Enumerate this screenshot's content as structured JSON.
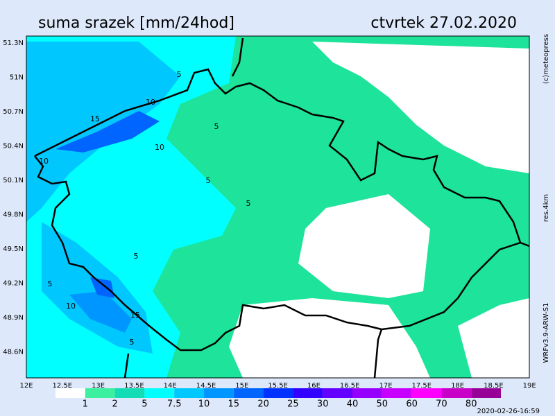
{
  "header": {
    "title": "suma srazek [mm/24hod]",
    "date": "ctvrtek 27.02.2020"
  },
  "map": {
    "lat_labels": [
      "51.3N",
      "51N",
      "50.7N",
      "50.4N",
      "50.1N",
      "49.8N",
      "49.5N",
      "49.2N",
      "48.9N",
      "48.6N"
    ],
    "lon_labels": [
      "12E",
      "12.5E",
      "13E",
      "13.5E",
      "14E",
      "14.5E",
      "15E",
      "15.5E",
      "16E",
      "16.5E",
      "17E",
      "17.5E",
      "18E",
      "18.5E",
      "19E"
    ],
    "contour_labels": [
      "5",
      "10",
      "15",
      "10",
      "10",
      "5",
      "5",
      "5",
      "5",
      "5",
      "10",
      "15",
      "5"
    ]
  },
  "legend": {
    "labels": [
      "1",
      "2",
      "5",
      "7.5",
      "10",
      "15",
      "20",
      "25",
      "30",
      "40",
      "50",
      "60",
      "70",
      "80"
    ],
    "colors": [
      "#ffffff",
      "#3cf0a0",
      "#14dcb4",
      "#00ffff",
      "#00c8ff",
      "#0096ff",
      "#0064ff",
      "#0032ff",
      "#3200ff",
      "#6400ff",
      "#9600ff",
      "#c800ff",
      "#ff00ff",
      "#c800c8",
      "#960096"
    ]
  },
  "side": {
    "copyright": "(c)meteopress",
    "resolution": "res.4km",
    "model": "WRFv3.9-ARW-S1"
  },
  "footer": {
    "timestamp": "2020-02-26-16:59"
  }
}
